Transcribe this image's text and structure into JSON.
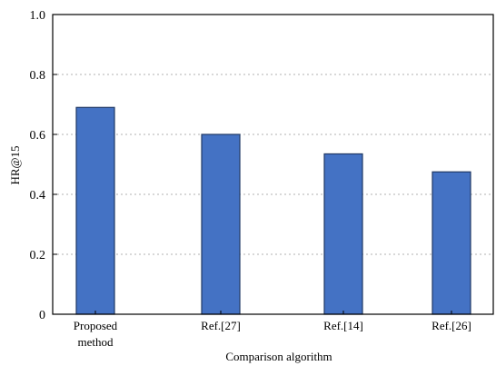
{
  "chart_data": {
    "type": "bar",
    "categories": [
      "Proposed method",
      "Ref.[27]",
      "Ref.[14]",
      "Ref.[26]"
    ],
    "category_label_lines": [
      [
        "Proposed",
        "method"
      ],
      [
        "Ref.[27]"
      ],
      [
        "Ref.[14]"
      ],
      [
        "Ref.[26]"
      ]
    ],
    "values": [
      0.69,
      0.6,
      0.535,
      0.475
    ],
    "xlabel": "Comparison algorithm",
    "ylabel": "HR@15",
    "ylim": [
      0,
      1.0
    ],
    "yticks": [
      "0",
      "0.2",
      "0.4",
      "0.6",
      "0.8",
      "1.0"
    ],
    "ytick_values": [
      0,
      0.2,
      0.4,
      0.6,
      0.8,
      1.0
    ],
    "grid": "horizontal dotted",
    "legend": "none",
    "colors": {
      "bar_fill": "#4472C4",
      "bar_stroke": "#1F3864",
      "axis": "#000000",
      "grid": "#B0B0B0"
    }
  }
}
